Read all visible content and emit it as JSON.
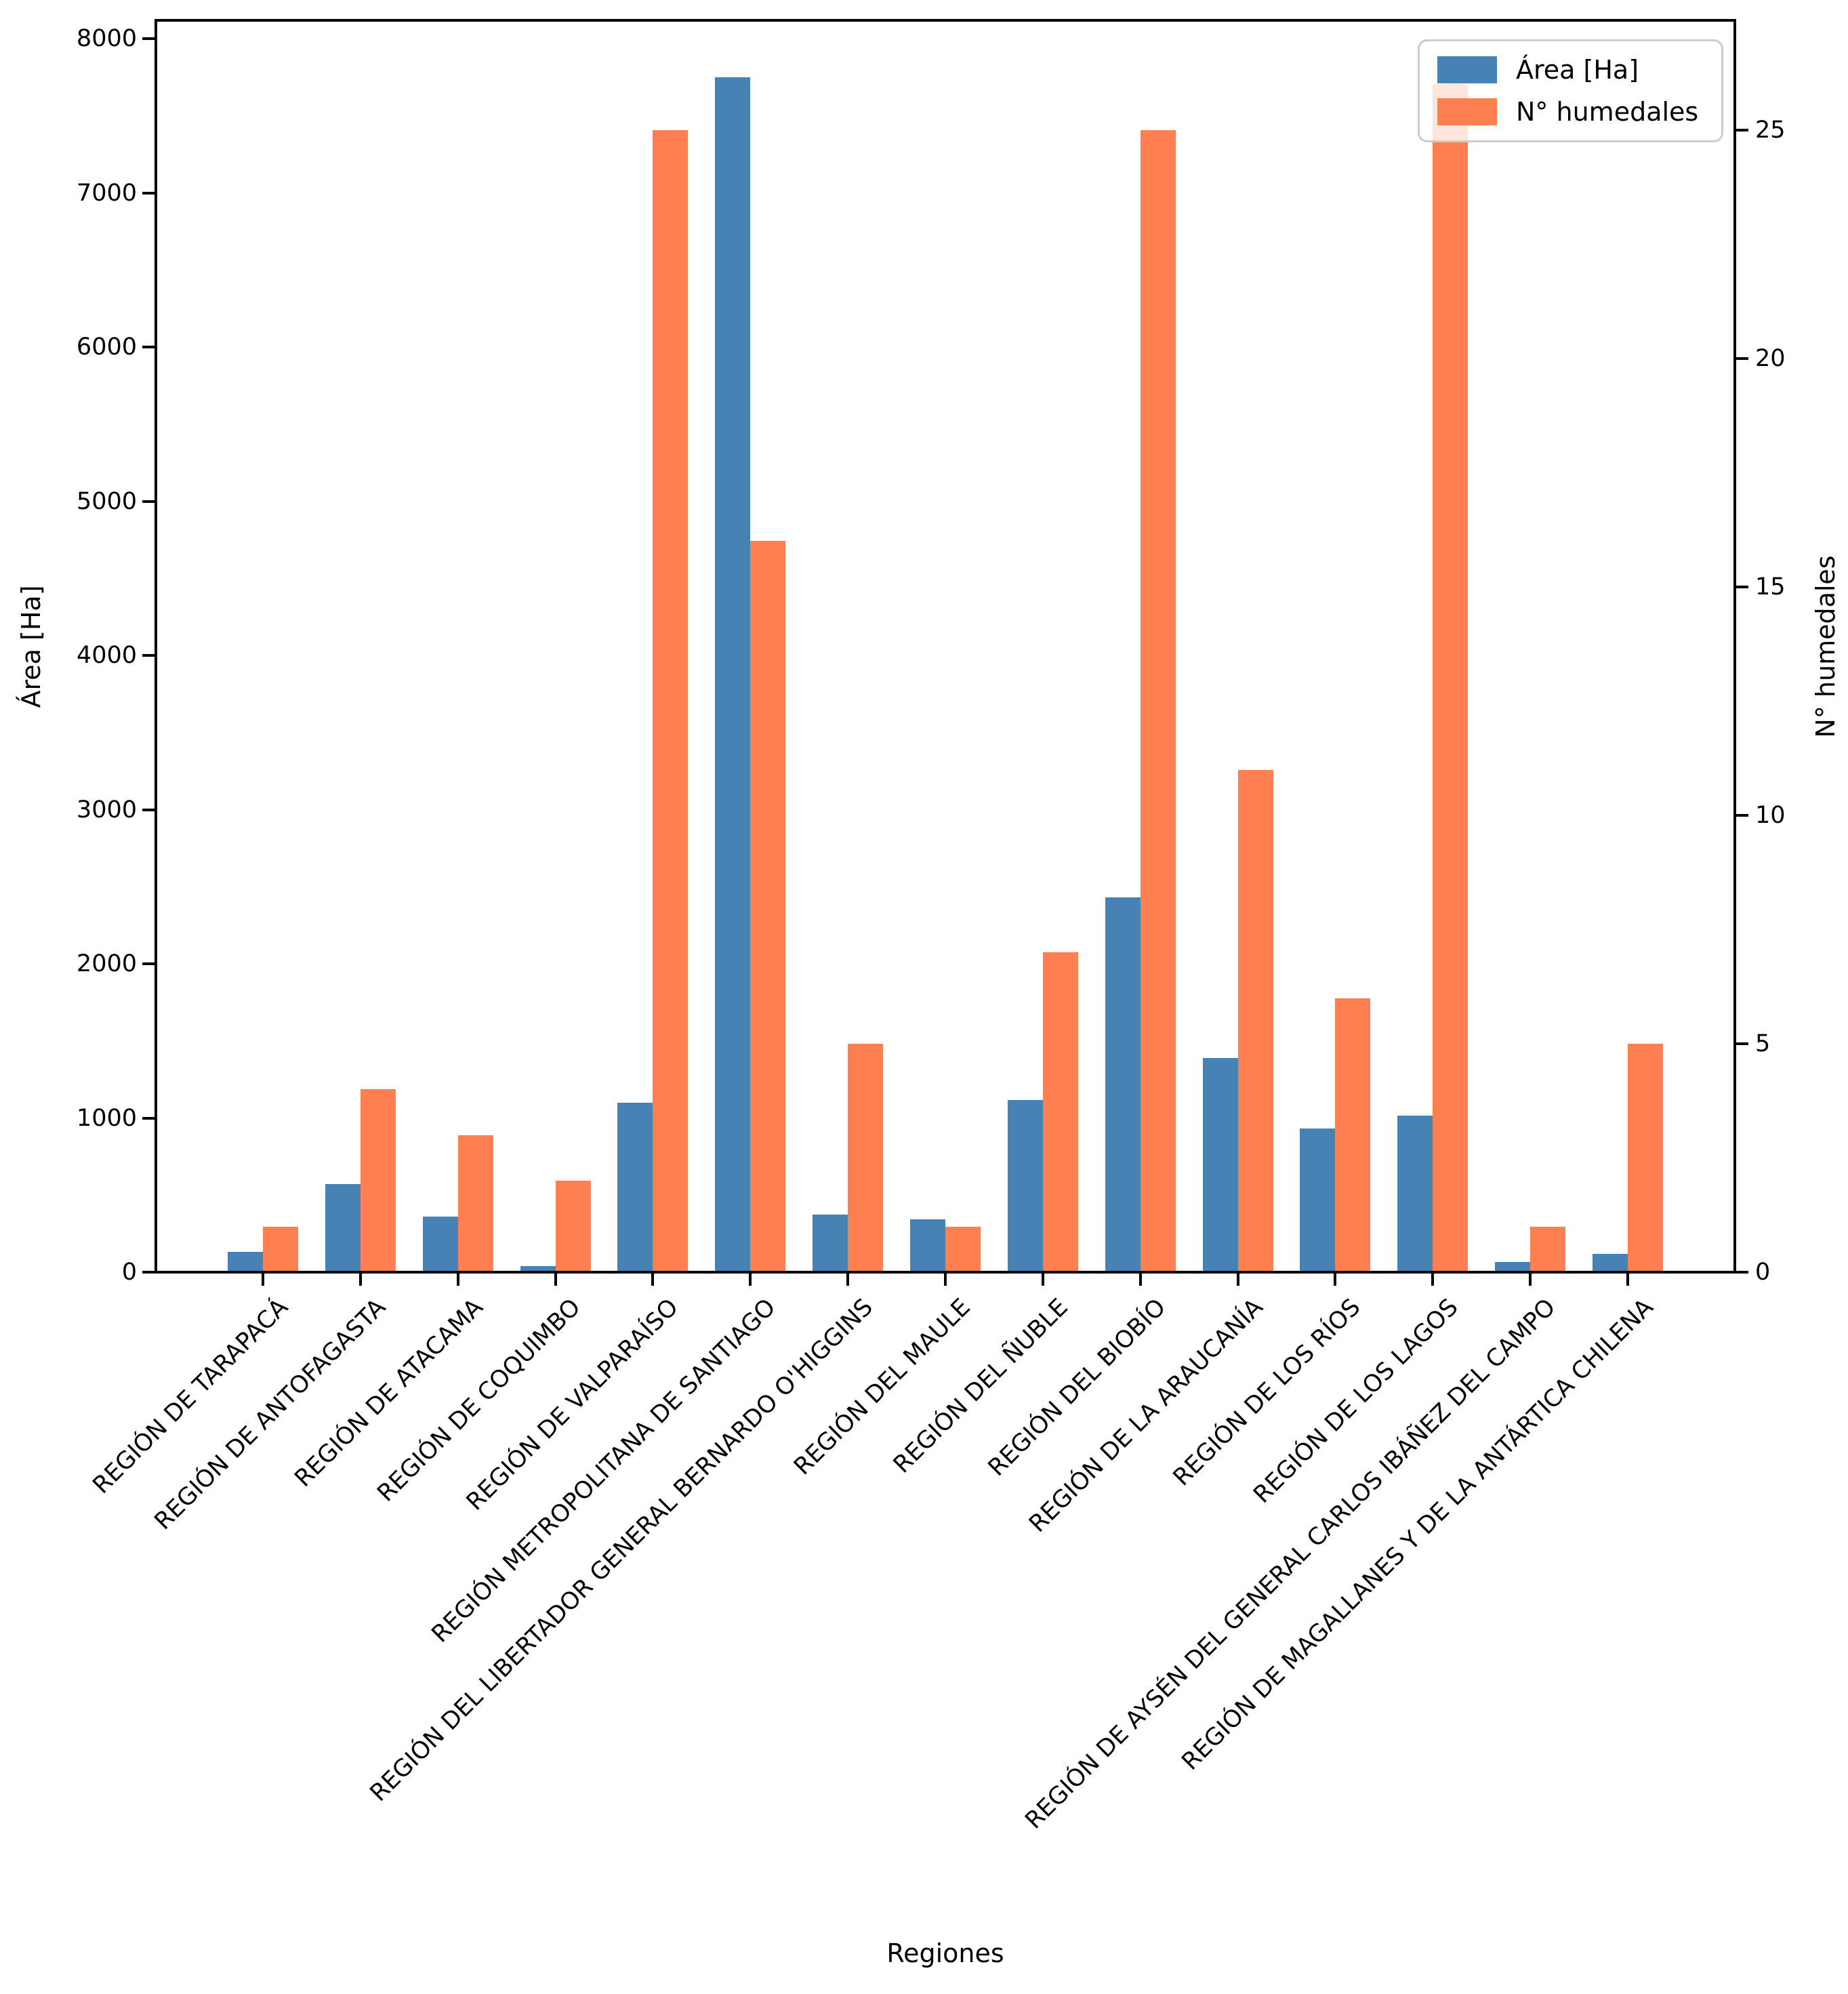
{
  "chart_data": {
    "type": "bar",
    "dual_axis": true,
    "title": "",
    "xlabel": "Regiones",
    "ylabel_left": "Área [Ha]",
    "ylabel_right": "N° humedales",
    "categories": [
      "REGIÓN DE TARAPACÁ",
      "REGIÓN DE ANTOFAGASTA",
      "REGIÓN DE ATACAMA",
      "REGIÓN DE COQUIMBO",
      "REGIÓN DE VALPARAÍSO",
      "REGIÓN METROPOLITANA DE SANTIAGO",
      "REGIÓN DEL LIBERTADOR GENERAL BERNARDO O'HIGGINS",
      "REGIÓN DEL MAULE",
      "REGIÓN DEL ÑUBLE",
      "REGIÓN DEL BIOBÍO",
      "REGIÓN DE LA ARAUCANÍA",
      "REGIÓN DE LOS RÍOS",
      "REGIÓN DE LOS LAGOS",
      "REGIÓN DE AYSÉN DEL GENERAL CARLOS IBÁÑEZ DEL CAMPO",
      "REGIÓN DE MAGALLANES Y DE LA ANTÁRTICA CHILENA"
    ],
    "series": [
      {
        "name": "Área [Ha]",
        "axis": "left",
        "color": "#4682B4",
        "values": [
          130,
          570,
          360,
          40,
          1100,
          7750,
          375,
          345,
          1115,
          2430,
          1390,
          930,
          1015,
          65,
          120
        ]
      },
      {
        "name": "N° humedales",
        "axis": "right",
        "color": "#FF7F50",
        "values": [
          1,
          4,
          3,
          2,
          25,
          16,
          5,
          1,
          7,
          25,
          11,
          6,
          26,
          1,
          5
        ]
      }
    ],
    "ylim_left": [
      0,
      8120
    ],
    "ylim_right": [
      0,
      27.4
    ],
    "yticks_left": [
      0,
      1000,
      2000,
      3000,
      4000,
      5000,
      6000,
      7000,
      8000
    ],
    "yticks_right": [
      0,
      5,
      10,
      15,
      20,
      25
    ],
    "legend_position": "upper right",
    "grid": false
  }
}
